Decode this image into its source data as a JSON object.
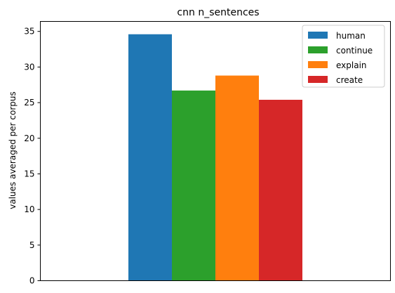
{
  "chart_data": {
    "type": "bar",
    "title": "cnn n_sentences",
    "xlabel": "",
    "ylabel": "values averaged per corpus",
    "ylim": [
      0,
      36.4
    ],
    "yticks": [
      0,
      5,
      10,
      15,
      20,
      25,
      30,
      35
    ],
    "grid": false,
    "legend_position": "top-right",
    "series": [
      {
        "name": "human",
        "values": [
          34.6
        ],
        "color": "#1f77b4"
      },
      {
        "name": "continue",
        "values": [
          26.7
        ],
        "color": "#2ca02c"
      },
      {
        "name": "explain",
        "values": [
          28.8
        ],
        "color": "#ff7f0e"
      },
      {
        "name": "create",
        "values": [
          25.4
        ],
        "color": "#d62728"
      }
    ]
  }
}
